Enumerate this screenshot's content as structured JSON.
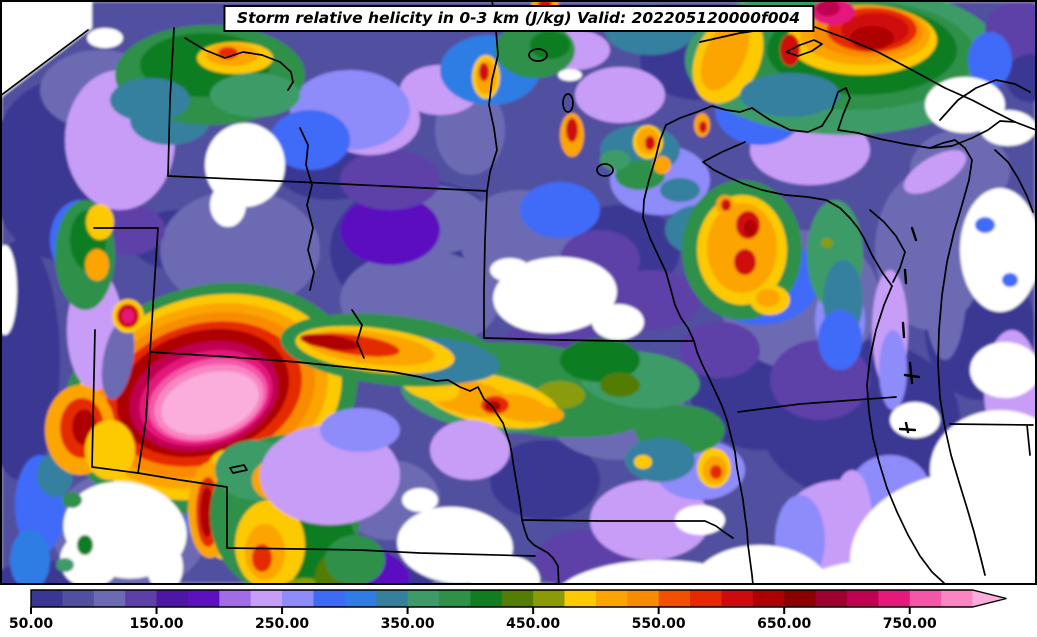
{
  "title": {
    "text": "Storm relative helicity in 0-3 km (J/kg) Valid: 202205120000f004"
  },
  "colorbar": {
    "min": 50,
    "max": 800,
    "step": 25,
    "segment_colors": [
      "#3a3794",
      "#504fa0",
      "#6c6ab2",
      "#5d3fa8",
      "#4d16a5",
      "#5c10bf",
      "#a36ce6",
      "#c89df8",
      "#8e8bfa",
      "#3f6af8",
      "#2f7de4",
      "#36809e",
      "#3e9b68",
      "#2f9048",
      "#0f7d20",
      "#537d04",
      "#8a9b07",
      "#fdc900",
      "#fca400",
      "#f88b00",
      "#f24f00",
      "#e62900",
      "#cf0a0e",
      "#ae0003",
      "#8a0000",
      "#9e0030",
      "#c00050",
      "#e5187c",
      "#f457a8",
      "#f985c3"
    ],
    "arrow_color": "#fbaedb",
    "tick_values": [
      50,
      150,
      250,
      350,
      450,
      550,
      650,
      750
    ],
    "tick_labels": [
      "50.00",
      "150.00",
      "250.00",
      "350.00",
      "450.00",
      "550.00",
      "650.00",
      "750.00"
    ]
  },
  "chart_data": {
    "type": "heatmap",
    "title": "Storm relative helicity in 0-3 km (J/kg) Valid: 202205120000f004",
    "variable": "Storm relative helicity in 0-3 km",
    "units": "J/kg",
    "valid_label": "202205120000f004",
    "legend_position": "bottom",
    "region": "Northern Plains / Upper Midwest (MT, WY, CO, ND, SD, NE, KS, MN, IA, MO, WI, IL, MI) with Lakes Superior and Michigan",
    "colormap": {
      "levels": [
        50,
        75,
        100,
        125,
        150,
        175,
        200,
        225,
        250,
        275,
        300,
        325,
        350,
        375,
        400,
        425,
        450,
        475,
        500,
        525,
        550,
        575,
        600,
        625,
        650,
        675,
        700,
        725,
        750,
        775,
        800
      ],
      "colors": [
        "#3a3794",
        "#504fa0",
        "#6c6ab2",
        "#5d3fa8",
        "#4d16a5",
        "#5c10bf",
        "#a36ce6",
        "#c89df8",
        "#8e8bfa",
        "#3f6af8",
        "#2f7de4",
        "#36809e",
        "#3e9b68",
        "#2f9048",
        "#0f7d20",
        "#537d04",
        "#8a9b07",
        "#fdc900",
        "#fca400",
        "#f88b00",
        "#f24f00",
        "#e62900",
        "#cf0a0e",
        "#ae0003",
        "#8a0000",
        "#9e0030",
        "#c00050",
        "#e5187c",
        "#f457a8",
        "#f985c3"
      ],
      "over_color": "#fbaedb",
      "under_color": "#ffffff"
    },
    "colorbar_ticks": [
      "50.00",
      "150.00",
      "250.00",
      "350.00",
      "450.00",
      "550.00",
      "650.00",
      "750.00"
    ],
    "features": [
      {
        "location": "northeast Colorado / Nebraska panhandle",
        "value": "> 800 J/kg",
        "description": "primary maximum, broad pink core ringed by magenta, red, orange, yellow and green"
      },
      {
        "location": "western Lake Superior / northern Minnesota border",
        "value": "550-650 J/kg",
        "description": "secondary maximum (red/orange blob ringed by green)"
      },
      {
        "location": "central Nebraska along the Missouri River into western Iowa",
        "value": "450-600 J/kg",
        "description": "west-east band of enhanced helicity (yellow/orange with small red cores)"
      },
      {
        "location": "west-central Wisconsin",
        "value": "500-625 J/kg",
        "description": "cluster of orange/red local maxima"
      },
      {
        "location": "south-central Kansas",
        "value": "450-600 J/kg",
        "description": "orange/red strip and spots embedded in green field"
      },
      {
        "location": "western South Dakota, central Minnesota/Iowa border, south KC area, lower Michigan and southeast corner",
        "value": "< 50 J/kg",
        "description": "white areas below lowest contour"
      },
      {
        "location": "most of remaining domain",
        "value": "50-250 J/kg",
        "description": "purple/slate/lavender background"
      }
    ]
  }
}
